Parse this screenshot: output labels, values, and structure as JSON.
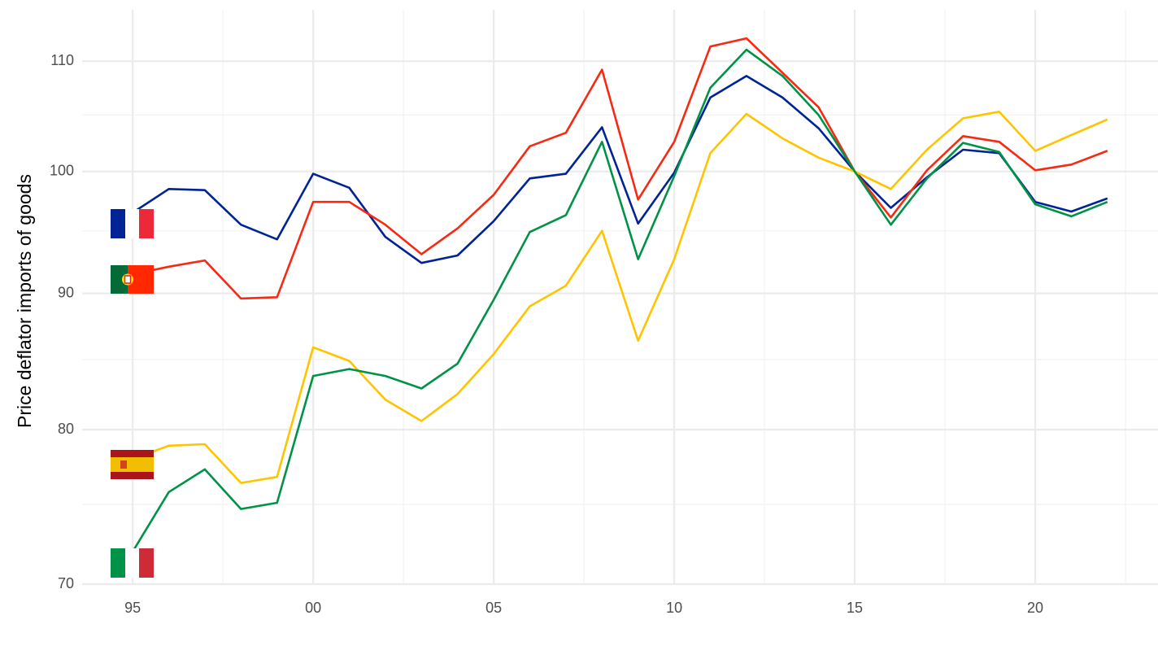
{
  "chart_data": {
    "type": "line",
    "y_label": "Price deflator imports of goods",
    "x": [
      1995,
      1996,
      1997,
      1998,
      1999,
      2000,
      2001,
      2002,
      2003,
      2004,
      2005,
      2006,
      2007,
      2008,
      2009,
      2010,
      2011,
      2012,
      2013,
      2014,
      2015,
      2016,
      2017,
      2018,
      2019,
      2020,
      2021,
      2022
    ],
    "series": [
      {
        "color": "#002395",
        "values": [
          96.5,
          98.5,
          98.4,
          95.5,
          94.3,
          99.8,
          98.6,
          94.5,
          92.4,
          93.0,
          95.8,
          99.4,
          99.8,
          103.9,
          95.6,
          99.9,
          106.6,
          108.6,
          106.6,
          103.8,
          100,
          96.9,
          99.5,
          101.9,
          101.6,
          97.4,
          96.6,
          97.7
        ]
      },
      {
        "color": "#f62a12",
        "values": [
          91.5,
          92.1,
          92.6,
          89.6,
          89.7,
          97.4,
          97.4,
          95.5,
          93.1,
          95.2,
          98.0,
          102.2,
          103.4,
          109.2,
          97.6,
          102.6,
          111.4,
          112.2,
          108.9,
          105.7,
          100,
          96.1,
          100.1,
          103.1,
          102.6,
          100.1,
          100.6,
          101.8
        ]
      },
      {
        "color": "#ffc400",
        "values": [
          78.0,
          78.9,
          79.0,
          76.4,
          76.8,
          85.9,
          84.9,
          82.1,
          80.6,
          82.5,
          85.4,
          89.0,
          90.6,
          95.0,
          86.4,
          92.7,
          101.6,
          105.1,
          102.9,
          101.2,
          100,
          98.5,
          101.9,
          104.7,
          105.3,
          101.8,
          103.2,
          104.6
        ]
      },
      {
        "color": "#009246",
        "values": [
          72.0,
          75.8,
          77.3,
          74.7,
          75.1,
          83.8,
          84.3,
          83.8,
          82.9,
          84.7,
          89.5,
          94.9,
          96.3,
          102.6,
          92.7,
          99.6,
          107.5,
          111.1,
          108.6,
          105.0,
          100,
          95.5,
          99.4,
          102.5,
          101.7,
          97.2,
          96.2,
          97.4
        ]
      }
    ],
    "xlim": [
      1993.6,
      2023.4
    ],
    "xticks": [
      {
        "value": 1995,
        "label": "95"
      },
      {
        "value": 2000,
        "label": "00"
      },
      {
        "value": 2005,
        "label": "05"
      },
      {
        "value": 2010,
        "label": "10"
      },
      {
        "value": 2015,
        "label": "15"
      },
      {
        "value": 2020,
        "label": "20"
      }
    ],
    "xminorticks": [
      1997.5,
      2002.5,
      2007.5,
      2012.5,
      2017.5,
      2022.5
    ],
    "ylim": [
      70,
      115
    ],
    "yticks": [
      70,
      80,
      90,
      100,
      110
    ],
    "yminorticks": [
      75,
      85,
      95,
      105
    ],
    "ylog": true,
    "grid": true
  }
}
